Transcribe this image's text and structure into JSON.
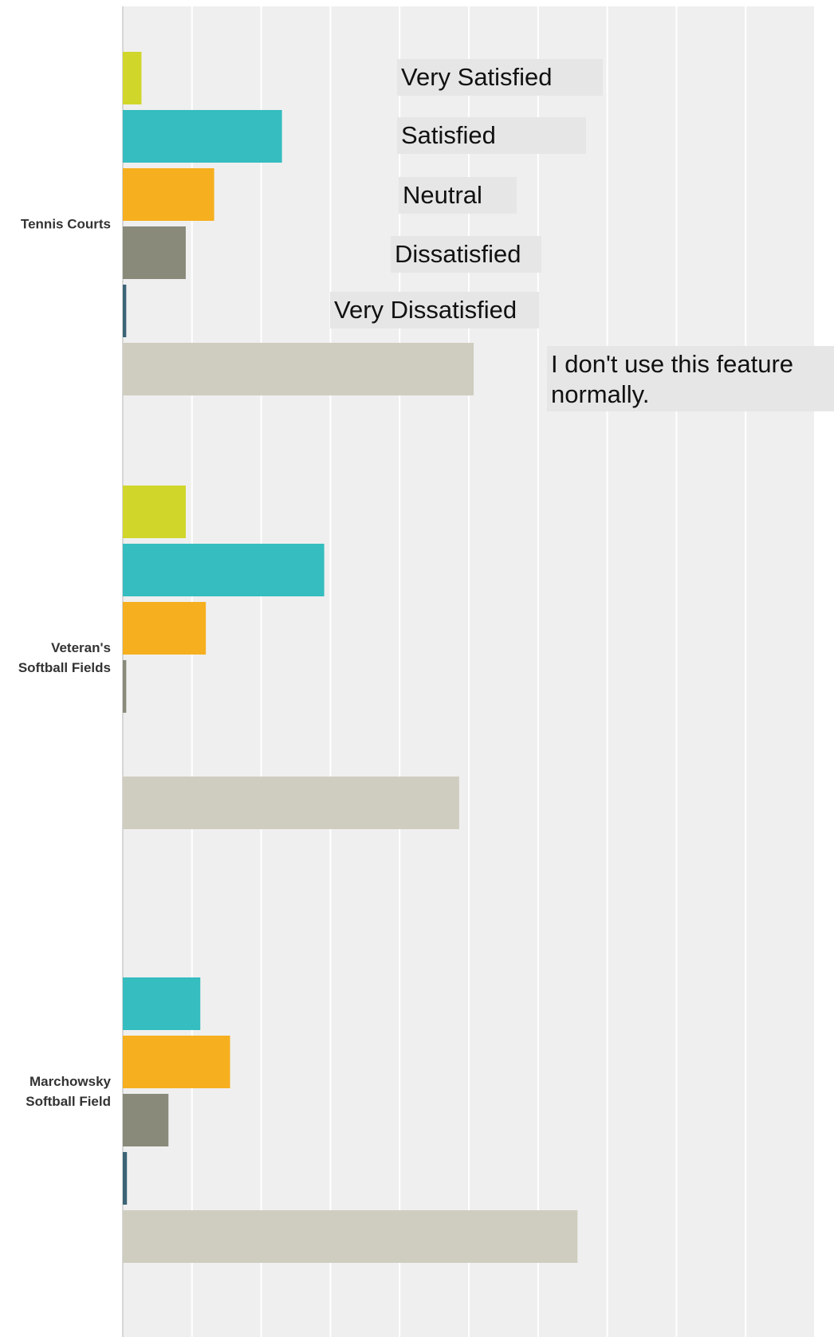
{
  "chart_data": {
    "type": "bar",
    "orientation": "horizontal",
    "title": "",
    "xlabel": "",
    "ylabel": "",
    "xlim": [
      0,
      100
    ],
    "grid": true,
    "legend_placement": "inside-top-right",
    "categories": [
      {
        "name": "Tennis Courts",
        "lines": [
          "Tennis Courts"
        ]
      },
      {
        "name": "Veteran's Softball Fields",
        "lines": [
          "Veteran's",
          "Softball Fields"
        ]
      },
      {
        "name": "Marchowsky Softball Field",
        "lines": [
          "Marchowsky",
          "Softball Field"
        ]
      }
    ],
    "series": [
      {
        "name": "Very Satisfied",
        "legend_lines": [
          "Very Satisfied"
        ],
        "color": "#d0d62a",
        "values": [
          2.7,
          9.1,
          0
        ]
      },
      {
        "name": "Satisfied",
        "legend_lines": [
          "Satisfied"
        ],
        "color": "#35bdbf",
        "values": [
          23.0,
          29.1,
          11.2
        ]
      },
      {
        "name": "Neutral",
        "legend_lines": [
          "Neutral"
        ],
        "color": "#f6af1f",
        "values": [
          13.2,
          12.0,
          15.5
        ]
      },
      {
        "name": "Dissatisfied",
        "legend_lines": [
          "Dissatisfied"
        ],
        "color": "#8a8a7b",
        "values": [
          9.1,
          0.5,
          6.6
        ]
      },
      {
        "name": "Very Dissatisfied",
        "legend_lines": [
          "Very Dissatisfied"
        ],
        "color": "#3b6476",
        "values": [
          0.5,
          0,
          0.6
        ]
      },
      {
        "name": "I don't use this feature normally.",
        "legend_lines": [
          "I don't use this feature",
          "normally."
        ],
        "color": "#cfcdbf",
        "values": [
          50.7,
          48.6,
          65.7
        ]
      }
    ]
  }
}
